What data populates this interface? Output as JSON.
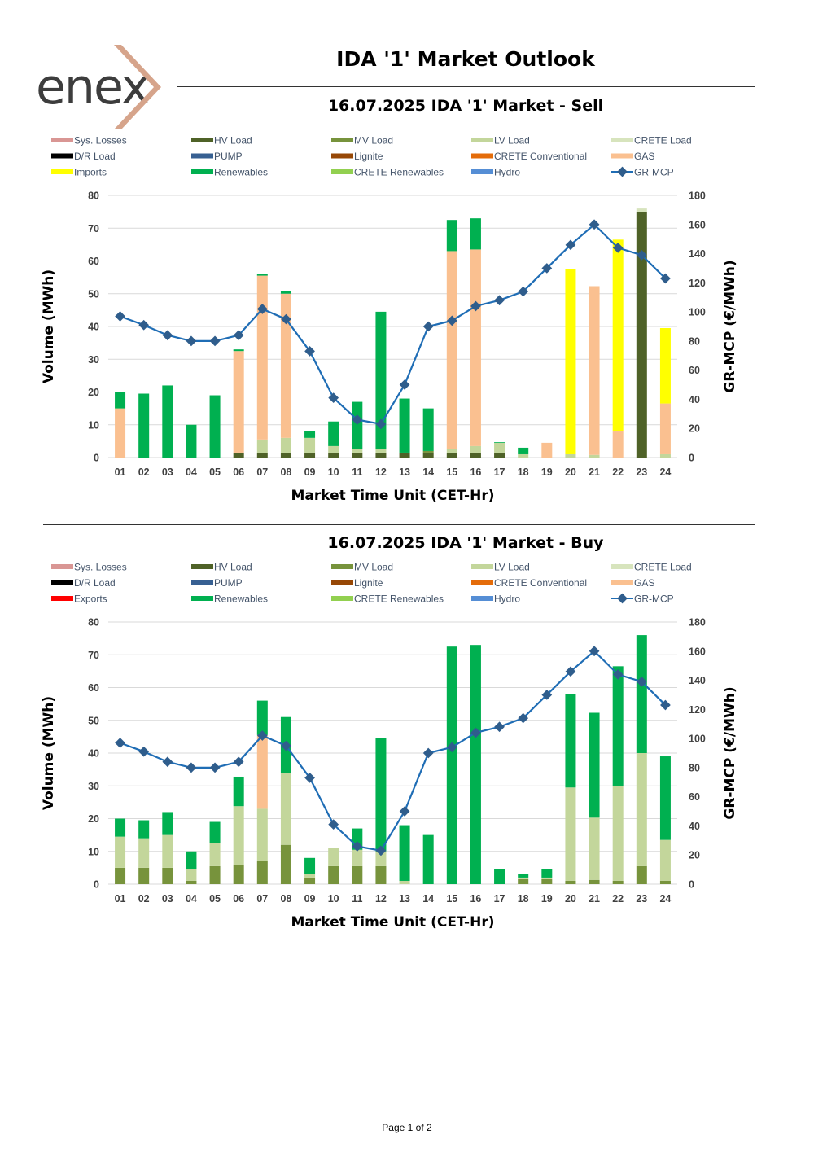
{
  "header": {
    "brand": "enex",
    "title": "IDA '1' Market Outlook"
  },
  "footer": {
    "page": "Page 1 of 2"
  },
  "chart_data": [
    {
      "id": "sell",
      "type": "bar",
      "stacked": true,
      "title": "16.07.2025  IDA '1' Market - Sell",
      "xlabel": "Market Time Unit (CET-Hr)",
      "ylabel": "Volume (MWh)",
      "y2label": "GR-MCP (€/MWh)",
      "ylim": [
        0,
        80
      ],
      "y2lim": [
        0,
        180
      ],
      "yticks": [
        0,
        10,
        20,
        30,
        40,
        50,
        60,
        70,
        80
      ],
      "y2ticks": [
        0,
        20,
        40,
        60,
        80,
        100,
        120,
        140,
        160,
        180
      ],
      "grid": true,
      "categories": [
        "01",
        "02",
        "03",
        "04",
        "05",
        "06",
        "07",
        "08",
        "09",
        "10",
        "11",
        "12",
        "13",
        "14",
        "15",
        "16",
        "17",
        "18",
        "19",
        "20",
        "21",
        "22",
        "23",
        "24"
      ],
      "legend": [
        {
          "name": "Sys. Losses",
          "color": "#d99694",
          "kind": "box"
        },
        {
          "name": "HV Load",
          "color": "#4f6228",
          "kind": "box"
        },
        {
          "name": "MV Load",
          "color": "#77933c",
          "kind": "box"
        },
        {
          "name": "LV Load",
          "color": "#c3d69b",
          "kind": "box"
        },
        {
          "name": "CRETE Load",
          "color": "#d7e4bd",
          "kind": "box"
        },
        {
          "name": "D/R Load",
          "color": "#000000",
          "kind": "box"
        },
        {
          "name": "PUMP",
          "color": "#376092",
          "kind": "box"
        },
        {
          "name": "Lignite",
          "color": "#974806",
          "kind": "box"
        },
        {
          "name": "CRETE Conventional",
          "color": "#e46c0a",
          "kind": "box"
        },
        {
          "name": "GAS",
          "color": "#fac090",
          "kind": "box"
        },
        {
          "name": "Imports",
          "color": "#ffff00",
          "kind": "box"
        },
        {
          "name": "Renewables",
          "color": "#00b050",
          "kind": "box"
        },
        {
          "name": "CRETE Renewables",
          "color": "#92d050",
          "kind": "box"
        },
        {
          "name": "Hydro",
          "color": "#558ed5",
          "kind": "box"
        },
        {
          "name": "GR-MCP",
          "color": "#1f6db5",
          "kind": "line"
        }
      ],
      "series": [
        {
          "name": "HV Load",
          "color": "#4f6228",
          "values": [
            0,
            0,
            0,
            0,
            0,
            1.5,
            1.5,
            1.5,
            1.5,
            1.5,
            1.5,
            1.5,
            1.5,
            1.5,
            1.5,
            1.5,
            1.5,
            0,
            0,
            0,
            0,
            0,
            75,
            0
          ]
        },
        {
          "name": "MV Load",
          "color": "#77933c",
          "values": [
            0,
            0,
            0,
            0,
            0,
            0,
            0,
            0,
            0,
            0,
            0,
            0,
            0,
            0.5,
            0,
            0,
            0,
            0,
            0,
            0,
            0,
            0,
            0,
            0
          ]
        },
        {
          "name": "LV Load",
          "color": "#c3d69b",
          "values": [
            0,
            0,
            0,
            0,
            0,
            0,
            4,
            4.5,
            4.5,
            2,
            1,
            1,
            0,
            0,
            1,
            2,
            3,
            1,
            0,
            1,
            0.8,
            0,
            0,
            1
          ]
        },
        {
          "name": "GAS",
          "color": "#fac090",
          "values": [
            15,
            0,
            0,
            0,
            0,
            31,
            50,
            44,
            0,
            0,
            0,
            0,
            0,
            0,
            60.5,
            60,
            0,
            0,
            4.5,
            0,
            51.5,
            8,
            0,
            15.5
          ]
        },
        {
          "name": "Imports",
          "color": "#ffff00",
          "values": [
            0,
            0,
            0,
            0,
            0,
            0,
            0,
            0,
            0,
            0,
            0,
            0,
            0,
            0,
            0,
            0,
            0,
            0,
            0,
            56.5,
            0,
            58.5,
            0,
            23
          ]
        },
        {
          "name": "Renewables",
          "color": "#00b050",
          "values": [
            5,
            19.5,
            22,
            10,
            19,
            0.5,
            0.5,
            0.8,
            2,
            7.5,
            14.5,
            42,
            16.5,
            13,
            9.5,
            9.5,
            0.2,
            2,
            0,
            0,
            0,
            0,
            0,
            0
          ]
        },
        {
          "name": "CRETE Load",
          "color": "#d7e4bd",
          "values": [
            0,
            0,
            0,
            0,
            0,
            0,
            0,
            0,
            0,
            0,
            0,
            0,
            0,
            0,
            0,
            0,
            0,
            0,
            0,
            0,
            0,
            0,
            1,
            0
          ]
        }
      ],
      "line": {
        "name": "GR-MCP",
        "color": "#1f6db5",
        "values": [
          97,
          91,
          84,
          80,
          80,
          84,
          102,
          95,
          73,
          41,
          26,
          23,
          50,
          90,
          94,
          104,
          108,
          114,
          130,
          146,
          160,
          144,
          139,
          123
        ]
      }
    },
    {
      "id": "buy",
      "type": "bar",
      "stacked": true,
      "title": "16.07.2025  IDA '1' Market - Buy",
      "xlabel": "Market Time Unit (CET-Hr)",
      "ylabel": "Volume (MWh)",
      "y2label": "GR-MCP (€/MWh)",
      "ylim": [
        0,
        80
      ],
      "y2lim": [
        0,
        180
      ],
      "yticks": [
        0,
        10,
        20,
        30,
        40,
        50,
        60,
        70,
        80
      ],
      "y2ticks": [
        0,
        20,
        40,
        60,
        80,
        100,
        120,
        140,
        160,
        180
      ],
      "grid": true,
      "categories": [
        "01",
        "02",
        "03",
        "04",
        "05",
        "06",
        "07",
        "08",
        "09",
        "10",
        "11",
        "12",
        "13",
        "14",
        "15",
        "16",
        "17",
        "18",
        "19",
        "20",
        "21",
        "22",
        "23",
        "24"
      ],
      "legend": [
        {
          "name": "Sys. Losses",
          "color": "#d99694",
          "kind": "box"
        },
        {
          "name": "HV Load",
          "color": "#4f6228",
          "kind": "box"
        },
        {
          "name": "MV Load",
          "color": "#77933c",
          "kind": "box"
        },
        {
          "name": "LV Load",
          "color": "#c3d69b",
          "kind": "box"
        },
        {
          "name": "CRETE Load",
          "color": "#d7e4bd",
          "kind": "box"
        },
        {
          "name": "D/R Load",
          "color": "#000000",
          "kind": "box"
        },
        {
          "name": "PUMP",
          "color": "#376092",
          "kind": "box"
        },
        {
          "name": "Lignite",
          "color": "#974806",
          "kind": "box"
        },
        {
          "name": "CRETE Conventional",
          "color": "#e46c0a",
          "kind": "box"
        },
        {
          "name": "GAS",
          "color": "#fac090",
          "kind": "box"
        },
        {
          "name": "Exports",
          "color": "#ff0000",
          "kind": "box"
        },
        {
          "name": "Renewables",
          "color": "#00b050",
          "kind": "box"
        },
        {
          "name": "CRETE Renewables",
          "color": "#92d050",
          "kind": "box"
        },
        {
          "name": "Hydro",
          "color": "#558ed5",
          "kind": "box"
        },
        {
          "name": "GR-MCP",
          "color": "#1f6db5",
          "kind": "line"
        }
      ],
      "series": [
        {
          "name": "MV Load",
          "color": "#77933c",
          "values": [
            5,
            5,
            5,
            1,
            5.5,
            5.8,
            7,
            12,
            2,
            5.5,
            5.5,
            5.5,
            0,
            0,
            0,
            0,
            0,
            1.5,
            1.5,
            1,
            1.3,
            1,
            5.5,
            1
          ]
        },
        {
          "name": "LV Load",
          "color": "#c3d69b",
          "values": [
            9.5,
            9,
            10,
            3.5,
            7,
            18,
            16,
            22,
            1,
            5.5,
            5,
            4.5,
            1,
            0,
            0,
            0,
            0,
            0.5,
            0.5,
            28.5,
            19,
            29,
            34.5,
            12.5
          ]
        },
        {
          "name": "GAS",
          "color": "#fac090",
          "values": [
            0,
            0,
            0,
            0,
            0,
            0,
            22.5,
            0,
            0,
            0,
            0,
            0,
            0,
            0,
            0,
            0,
            0,
            0,
            0,
            0,
            0,
            0,
            0,
            0
          ]
        },
        {
          "name": "Renewables",
          "color": "#00b050",
          "values": [
            5.5,
            5.5,
            7,
            5.5,
            6.5,
            9,
            10.5,
            17,
            5,
            0,
            6.5,
            34.5,
            17,
            15,
            72.5,
            73,
            4.5,
            1,
            2.5,
            28.5,
            32,
            36.5,
            36,
            25.5
          ]
        }
      ],
      "line": {
        "name": "GR-MCP",
        "color": "#1f6db5",
        "values": [
          97,
          91,
          84,
          80,
          80,
          84,
          102,
          95,
          73,
          41,
          26,
          23,
          50,
          90,
          94,
          104,
          108,
          114,
          130,
          146,
          160,
          144,
          139,
          123
        ]
      }
    }
  ]
}
